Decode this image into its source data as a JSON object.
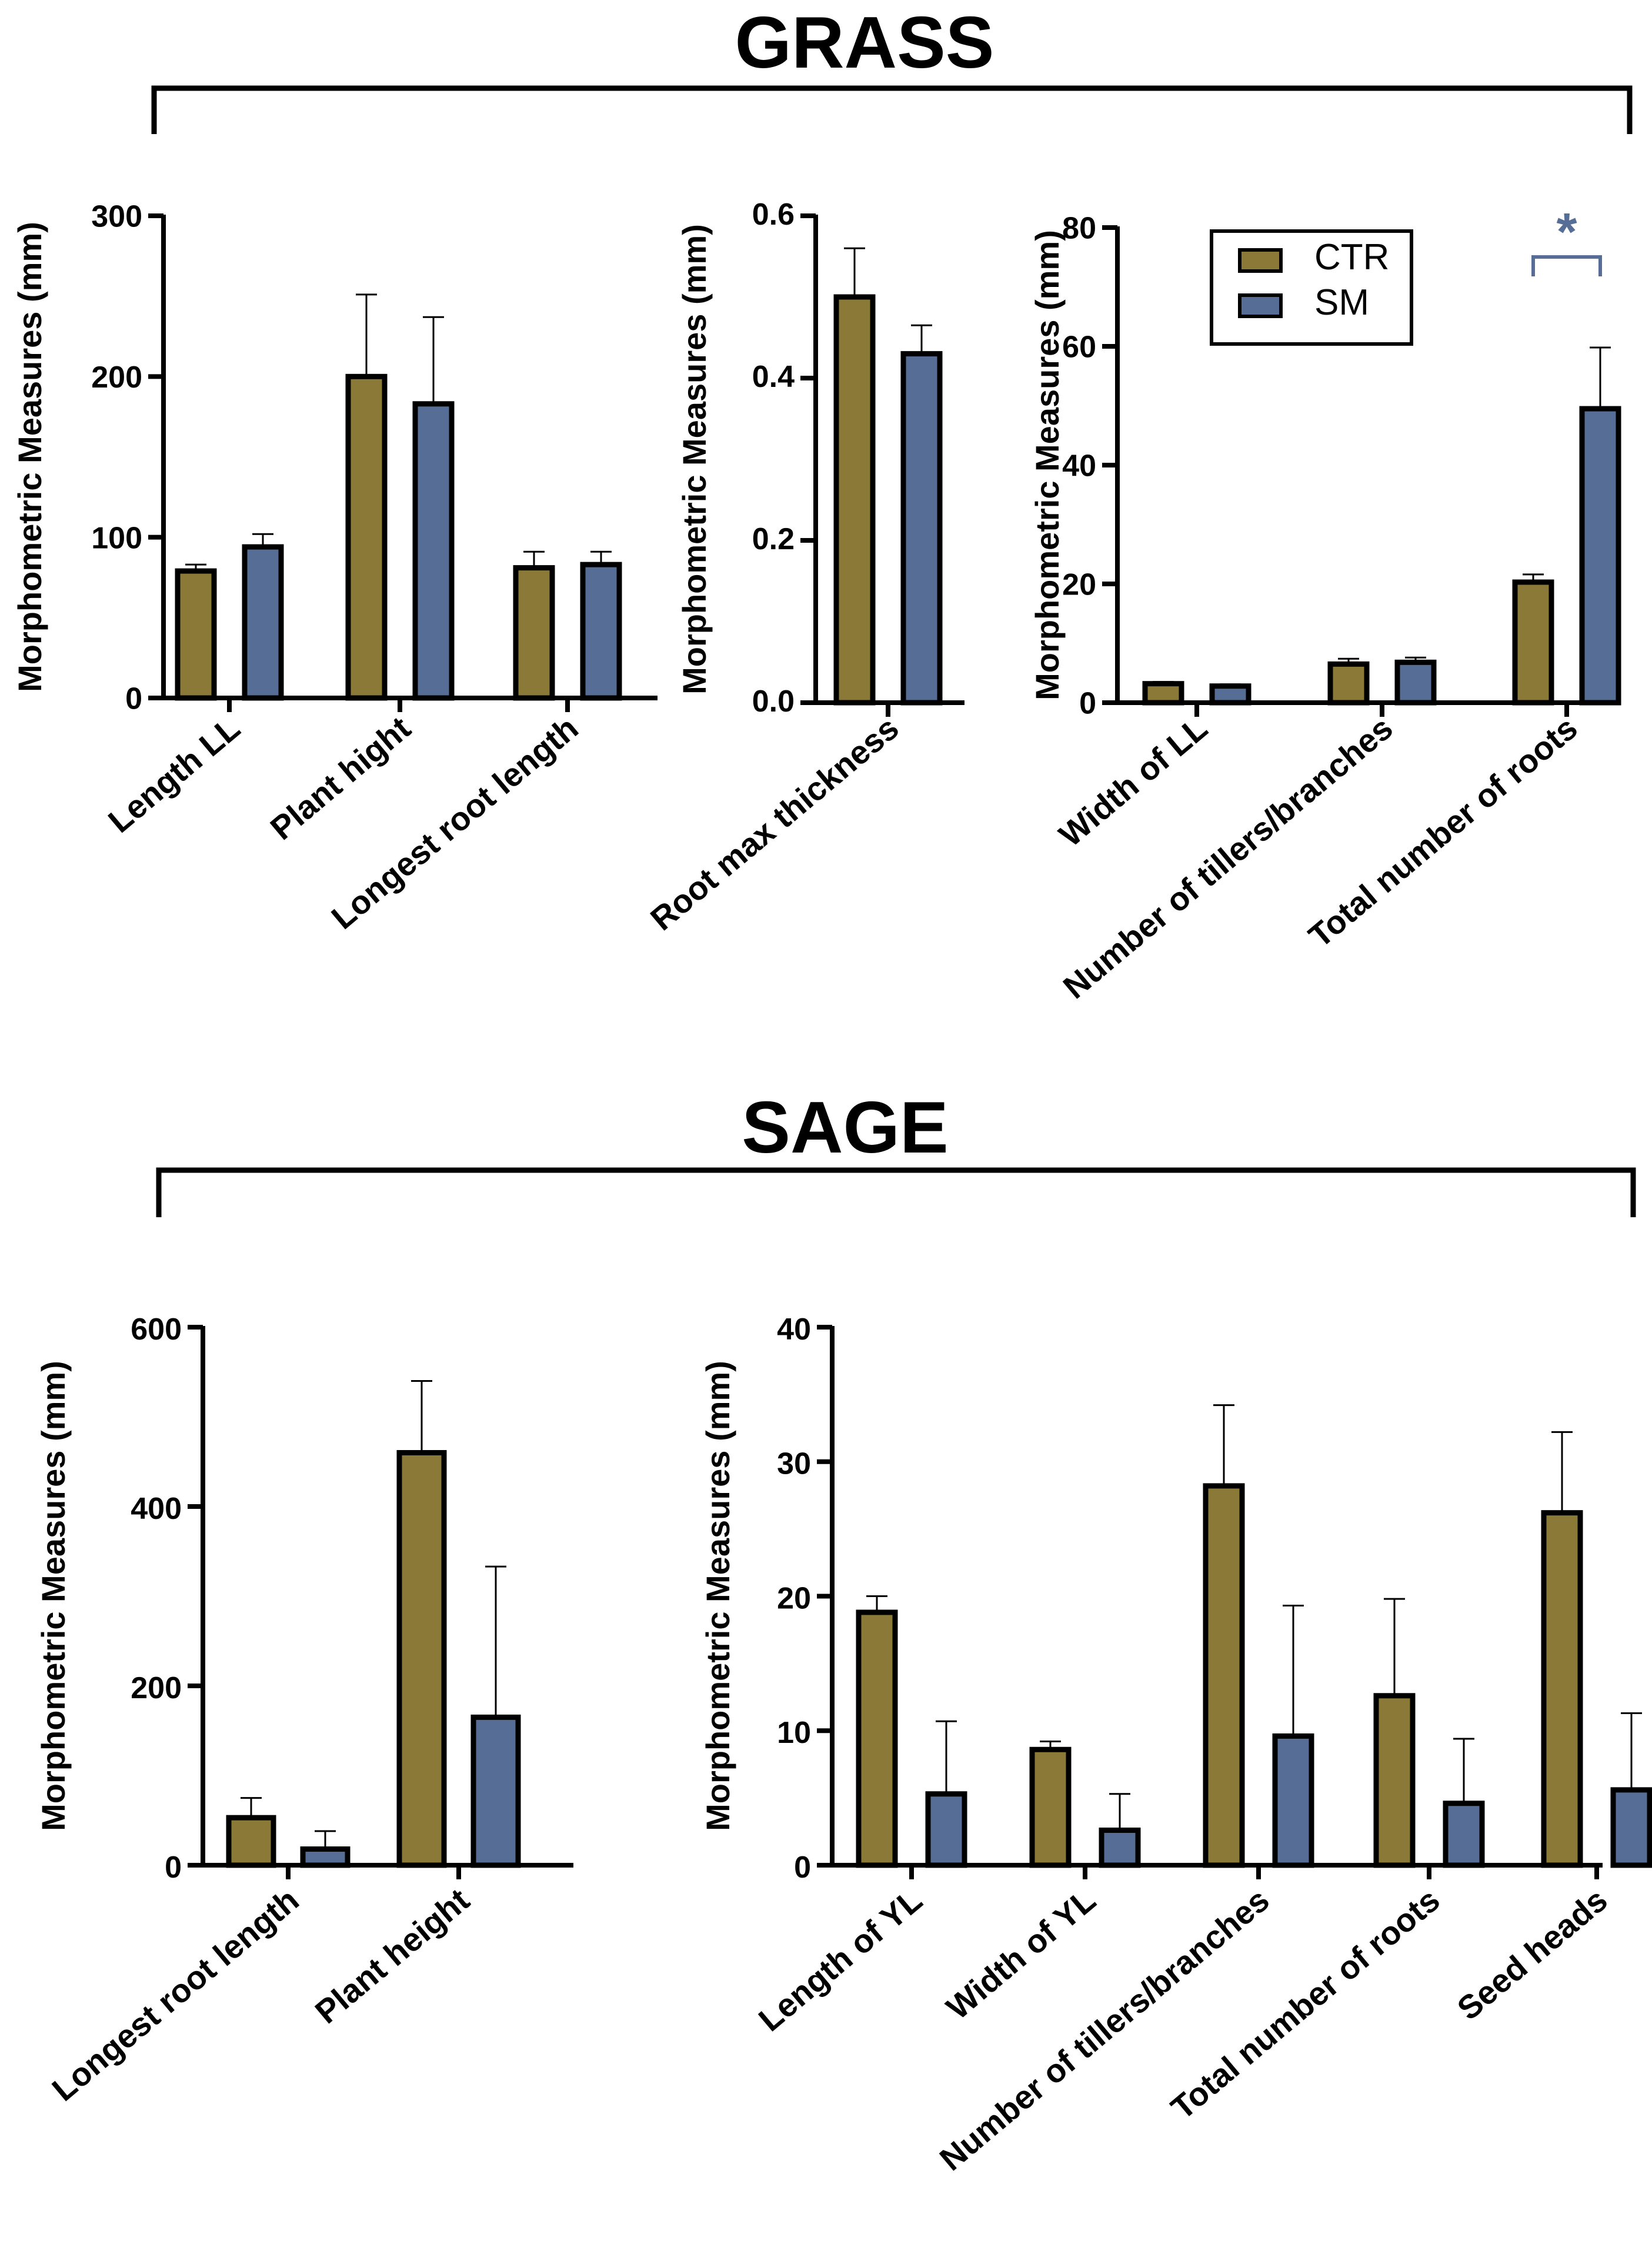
{
  "colors": {
    "CTR": "#8b7a37",
    "SM": "#566e96",
    "axis": "#000000",
    "significance": "#566e96"
  },
  "sections": {
    "grass_title": "GRASS",
    "sage_title": "SAGE"
  },
  "legend": {
    "items": [
      "CTR",
      "SM"
    ]
  },
  "significance": {
    "marker": "*"
  },
  "chart_data": [
    {
      "id": "grass-a",
      "type": "bar",
      "group": "GRASS",
      "ylabel": "Morphometric Measures  (mm)",
      "ylim": [
        0,
        300
      ],
      "yticks": [
        "0",
        "100",
        "200",
        "300"
      ],
      "categories": [
        "Length LL",
        "Plant hight",
        "Longest root length"
      ],
      "series": [
        {
          "name": "CTR",
          "values": [
            79,
            200,
            81
          ],
          "errors": [
            4,
            51,
            10
          ]
        },
        {
          "name": "SM",
          "values": [
            94,
            183,
            83
          ],
          "errors": [
            8,
            54,
            8
          ]
        }
      ]
    },
    {
      "id": "grass-b",
      "type": "bar",
      "group": "GRASS",
      "ylabel": "Morphometric Measures  (mm)",
      "ylim": [
        0,
        0.6
      ],
      "yticks": [
        "0.0",
        "0.2",
        "0.4",
        "0.6"
      ],
      "categories": [
        "Root max thickness"
      ],
      "series": [
        {
          "name": "CTR",
          "values": [
            0.5
          ],
          "errors": [
            0.06
          ]
        },
        {
          "name": "SM",
          "values": [
            0.43
          ],
          "errors": [
            0.035
          ]
        }
      ]
    },
    {
      "id": "grass-c",
      "type": "bar",
      "group": "GRASS",
      "ylabel": "Morphometric Measures  (mm)",
      "ylim": [
        0,
        80
      ],
      "yticks": [
        "0",
        "20",
        "40",
        "60",
        "80"
      ],
      "categories": [
        "Width of LL",
        "Number of tillers/branches",
        "Total number of roots"
      ],
      "series": [
        {
          "name": "CTR",
          "values": [
            3.2,
            6.5,
            20.3
          ],
          "errors": [
            0.3,
            0.9,
            1.3
          ]
        },
        {
          "name": "SM",
          "values": [
            2.8,
            6.8,
            49.5
          ],
          "errors": [
            0.3,
            0.8,
            10.3
          ]
        }
      ],
      "legend": "top-center",
      "significant": [
        "Total number of roots"
      ]
    },
    {
      "id": "sage-a",
      "type": "bar",
      "group": "SAGE",
      "ylabel": "Morphometric Measures  (mm)",
      "ylim": [
        0,
        600
      ],
      "yticks": [
        "0",
        "200",
        "400",
        "600"
      ],
      "categories": [
        "Longest root length",
        "Plant height"
      ],
      "series": [
        {
          "name": "CTR",
          "values": [
            53,
            460
          ],
          "errors": [
            22,
            80
          ]
        },
        {
          "name": "SM",
          "values": [
            18,
            165
          ],
          "errors": [
            20,
            168
          ]
        }
      ]
    },
    {
      "id": "sage-b",
      "type": "bar",
      "group": "SAGE",
      "ylabel": "Morphometric Measures  (mm)",
      "ylim": [
        0,
        40
      ],
      "yticks": [
        "0",
        "10",
        "20",
        "30",
        "40"
      ],
      "categories": [
        "Length of YL",
        "Width of YL",
        "Number of tillers/branches",
        "Total number of roots",
        "Seed heads"
      ],
      "series": [
        {
          "name": "CTR",
          "values": [
            18.8,
            8.6,
            28.2,
            12.6,
            26.2
          ],
          "errors": [
            1.2,
            0.6,
            6.0,
            7.2,
            6.0
          ]
        },
        {
          "name": "SM",
          "values": [
            5.3,
            2.6,
            9.6,
            4.6,
            5.6
          ],
          "errors": [
            5.4,
            2.7,
            9.7,
            4.8,
            5.7
          ]
        }
      ]
    }
  ]
}
